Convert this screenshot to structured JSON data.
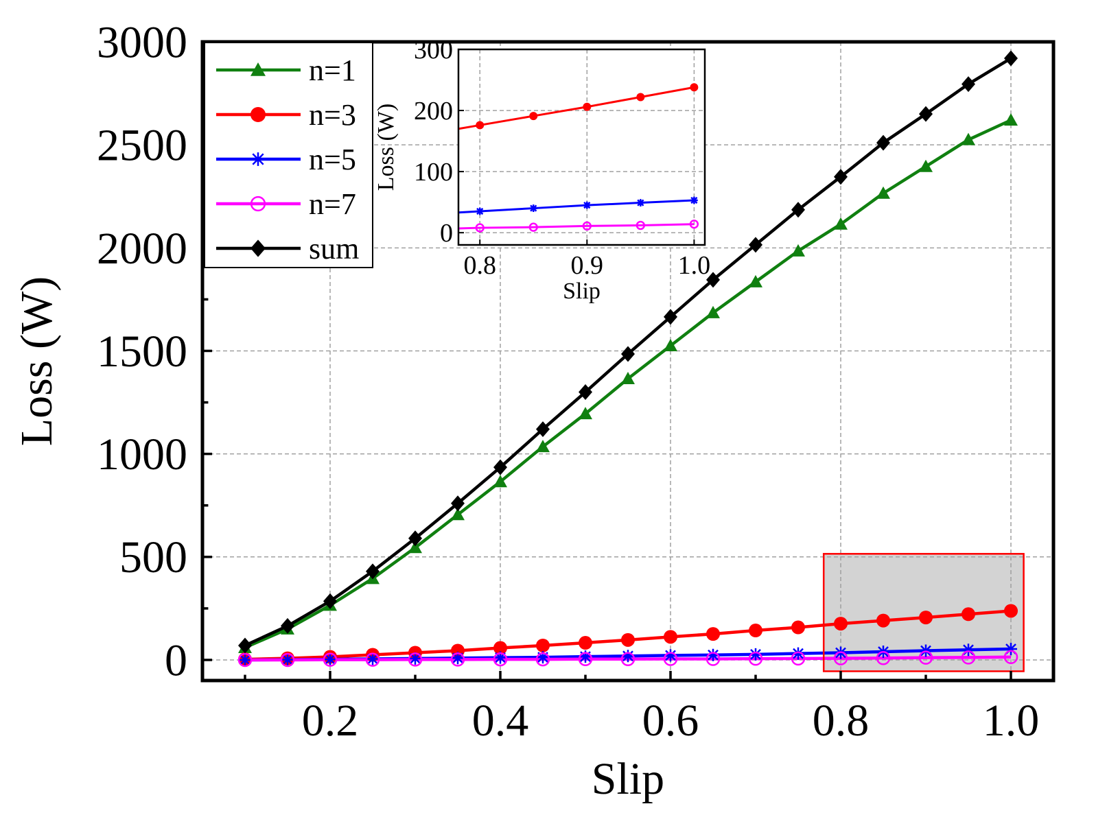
{
  "chart_data": [
    {
      "id": "main",
      "type": "line",
      "title": "",
      "xlabel": "Slip",
      "ylabel": "Loss (W)",
      "xlim": [
        0.05,
        1.05
      ],
      "ylim": [
        -100,
        3000
      ],
      "xticks": [
        0.2,
        0.4,
        0.6,
        0.8,
        1.0
      ],
      "xtick_labels": [
        "0.2",
        "0.4",
        "0.6",
        "0.8",
        "1.0"
      ],
      "yticks": [
        0,
        500,
        1000,
        1500,
        2000,
        2500,
        3000
      ],
      "ytick_labels": [
        "0",
        "500",
        "1000",
        "1500",
        "2000",
        "2500",
        "3000"
      ],
      "grid": true,
      "legend_position": "top-left",
      "x": [
        0.1,
        0.15,
        0.2,
        0.25,
        0.3,
        0.35,
        0.4,
        0.45,
        0.5,
        0.55,
        0.6,
        0.65,
        0.7,
        0.75,
        0.8,
        0.85,
        0.9,
        0.95,
        1.0
      ],
      "series": [
        {
          "name": "n=1",
          "color": "#108010",
          "marker": "triangle",
          "values": [
            60,
            150,
            265,
            395,
            545,
            705,
            865,
            1035,
            1195,
            1365,
            1525,
            1685,
            1835,
            1985,
            2115,
            2265,
            2395,
            2525,
            2620
          ]
        },
        {
          "name": "n=3",
          "color": "#ff0000",
          "marker": "circle",
          "values": [
            3,
            8,
            15,
            25,
            35,
            45,
            58,
            70,
            83,
            97,
            112,
            126,
            143,
            158,
            176,
            191,
            206,
            222,
            238
          ]
        },
        {
          "name": "n=5",
          "color": "#0000ff",
          "marker": "asterisk",
          "values": [
            0,
            1,
            3,
            5,
            7,
            9,
            11,
            13,
            16,
            19,
            22,
            24,
            27,
            31,
            35,
            40,
            45,
            49,
            53
          ]
        },
        {
          "name": "n=7",
          "color": "#ff00ff",
          "marker": "open-circle",
          "values": [
            0,
            0,
            1,
            1,
            2,
            2,
            3,
            3,
            4,
            4,
            5,
            5,
            6,
            7,
            8,
            9,
            11,
            12,
            14
          ]
        },
        {
          "name": "sum",
          "color": "#000000",
          "marker": "diamond",
          "values": [
            70,
            165,
            285,
            430,
            590,
            760,
            935,
            1120,
            1300,
            1485,
            1665,
            1845,
            2015,
            2185,
            2345,
            2510,
            2650,
            2795,
            2920
          ]
        }
      ],
      "highlight_region": {
        "x": [
          0.78,
          1.015
        ],
        "y": [
          -55,
          515
        ],
        "fill": "#d3d3d3",
        "stroke": "#ff0000"
      }
    },
    {
      "id": "inset",
      "type": "line",
      "title": "",
      "xlabel": "Slip",
      "ylabel": "Loss (W)",
      "xlim": [
        0.78,
        1.01
      ],
      "ylim": [
        -20,
        300
      ],
      "xticks": [
        0.8,
        0.9,
        1.0
      ],
      "xtick_labels": [
        "0.8",
        "0.9",
        "1.0"
      ],
      "yticks": [
        0,
        100,
        200,
        300
      ],
      "ytick_labels": [
        "0",
        "100",
        "200",
        "300"
      ],
      "grid": true,
      "x": [
        0.78,
        0.8,
        0.85,
        0.9,
        0.95,
        1.0
      ],
      "series": [
        {
          "name": "n=3",
          "color": "#ff0000",
          "marker": "circle",
          "values": [
            170,
            176,
            191,
            206,
            222,
            238
          ]
        },
        {
          "name": "n=5",
          "color": "#0000ff",
          "marker": "asterisk",
          "values": [
            33,
            35,
            40,
            45,
            49,
            53
          ]
        },
        {
          "name": "n=7",
          "color": "#ff00ff",
          "marker": "open-circle",
          "values": [
            7,
            8,
            9,
            11,
            12,
            14
          ]
        }
      ]
    }
  ]
}
